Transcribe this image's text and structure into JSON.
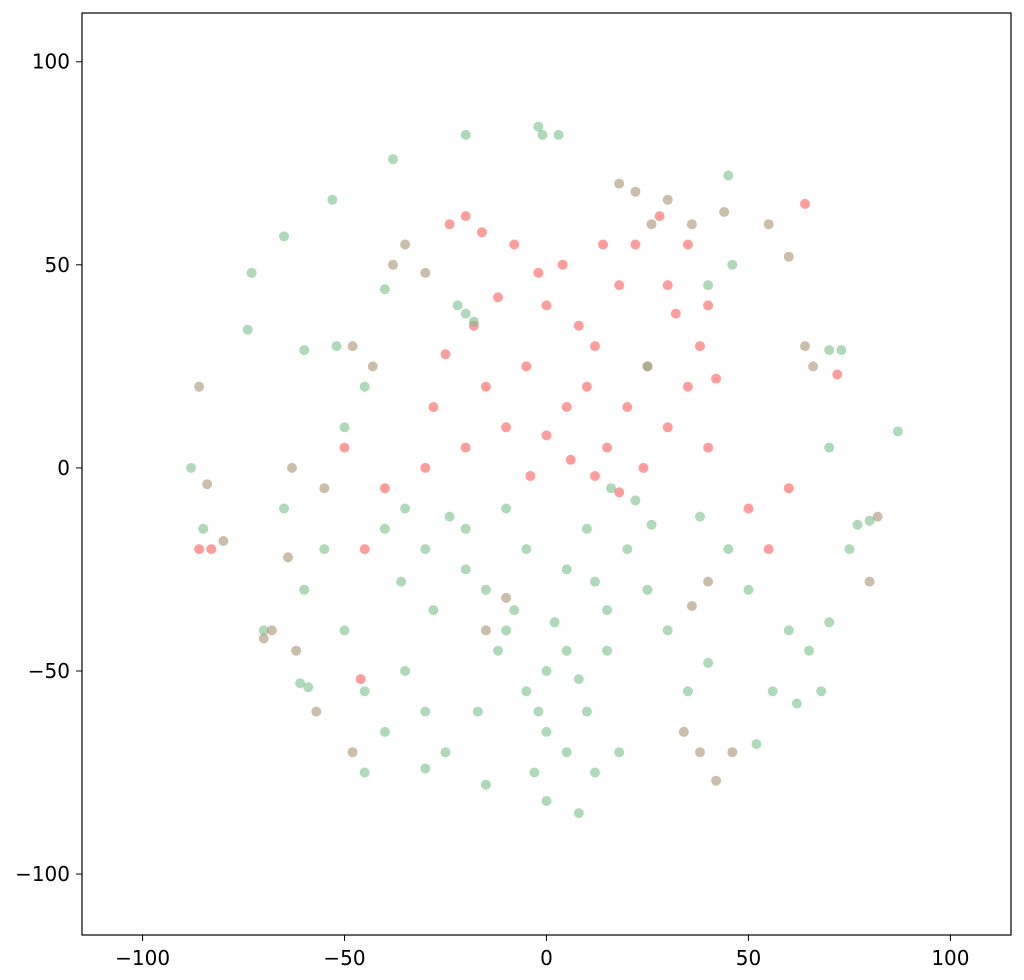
{
  "chart_data": {
    "type": "scatter",
    "title": "",
    "xlabel": "",
    "ylabel": "",
    "xlim": [
      -115,
      115
    ],
    "ylim": [
      -115,
      112
    ],
    "grid": false,
    "legend": "none",
    "x_ticks": [
      -100,
      -50,
      0,
      50,
      100
    ],
    "y_ticks": [
      -100,
      -50,
      0,
      50,
      100
    ],
    "x_tick_labels": [
      "−100",
      "−50",
      "0",
      "50",
      "100"
    ],
    "y_tick_labels": [
      "−100",
      "−50",
      "0",
      "50",
      "100"
    ],
    "colors": {
      "red": "#ff4d4d",
      "green": "#6dbb82",
      "mixed": "#a08a68"
    },
    "series": [
      {
        "color": "#ff4d4d",
        "points": [
          [
            -20,
            62
          ],
          [
            -16,
            58
          ],
          [
            -24,
            60
          ],
          [
            5,
            15
          ],
          [
            10,
            20
          ],
          [
            15,
            5
          ],
          [
            20,
            15
          ],
          [
            -5,
            25
          ],
          [
            -10,
            10
          ],
          [
            25,
            25
          ],
          [
            30,
            10
          ],
          [
            35,
            20
          ],
          [
            40,
            5
          ],
          [
            12,
            30
          ],
          [
            8,
            35
          ],
          [
            0,
            40
          ],
          [
            -15,
            20
          ],
          [
            -20,
            5
          ],
          [
            18,
            45
          ],
          [
            22,
            55
          ],
          [
            30,
            45
          ],
          [
            35,
            55
          ],
          [
            40,
            40
          ],
          [
            -30,
            0
          ],
          [
            -40,
            -5
          ],
          [
            -45,
            -20
          ],
          [
            -50,
            5
          ],
          [
            50,
            -10
          ],
          [
            55,
            -20
          ],
          [
            60,
            -5
          ],
          [
            -8,
            55
          ],
          [
            -2,
            48
          ],
          [
            4,
            50
          ],
          [
            14,
            55
          ],
          [
            28,
            62
          ],
          [
            32,
            38
          ],
          [
            38,
            30
          ],
          [
            42,
            22
          ],
          [
            -12,
            42
          ],
          [
            -18,
            35
          ],
          [
            -25,
            28
          ],
          [
            -28,
            15
          ],
          [
            6,
            2
          ],
          [
            12,
            -2
          ],
          [
            18,
            -6
          ],
          [
            24,
            0
          ],
          [
            0,
            8
          ],
          [
            -4,
            -2
          ],
          [
            -46,
            -52
          ],
          [
            -83,
            -20
          ],
          [
            -86,
            -20
          ],
          [
            64,
            65
          ],
          [
            72,
            23
          ]
        ]
      },
      {
        "color": "#6dbb82",
        "points": [
          [
            0,
            -50
          ],
          [
            5,
            -45
          ],
          [
            -5,
            -55
          ],
          [
            -10,
            -40
          ],
          [
            10,
            -60
          ],
          [
            15,
            -35
          ],
          [
            -15,
            -30
          ],
          [
            20,
            -20
          ],
          [
            -20,
            -25
          ],
          [
            0,
            -65
          ],
          [
            -3,
            -75
          ],
          [
            5,
            -70
          ],
          [
            -25,
            -70
          ],
          [
            -30,
            -60
          ],
          [
            30,
            -40
          ],
          [
            25,
            -30
          ],
          [
            -35,
            -10
          ],
          [
            -40,
            -15
          ],
          [
            45,
            -20
          ],
          [
            50,
            -30
          ],
          [
            -55,
            -20
          ],
          [
            60,
            -40
          ],
          [
            -60,
            -30
          ],
          [
            35,
            -55
          ],
          [
            -45,
            -55
          ],
          [
            -61,
            -53
          ],
          [
            -59,
            -54
          ],
          [
            -88,
            0
          ],
          [
            -85,
            -15
          ],
          [
            80,
            -13
          ],
          [
            77,
            -14
          ],
          [
            0,
            -82
          ],
          [
            65,
            -45
          ],
          [
            70,
            -38
          ],
          [
            75,
            -20
          ],
          [
            -70,
            -40
          ],
          [
            -65,
            -10
          ],
          [
            -50,
            -40
          ],
          [
            -10,
            -10
          ],
          [
            10,
            -15
          ],
          [
            -5,
            -20
          ],
          [
            5,
            -25
          ],
          [
            12,
            -28
          ],
          [
            -8,
            -35
          ],
          [
            -12,
            -45
          ],
          [
            8,
            -52
          ],
          [
            -2,
            -60
          ],
          [
            2,
            -38
          ],
          [
            22,
            -8
          ],
          [
            26,
            -14
          ],
          [
            -24,
            -12
          ],
          [
            -30,
            -20
          ],
          [
            -28,
            -35
          ],
          [
            -36,
            -28
          ],
          [
            38,
            -12
          ],
          [
            -53,
            66
          ],
          [
            -1,
            82
          ],
          [
            3,
            82
          ],
          [
            -2,
            84
          ],
          [
            -20,
            38
          ],
          [
            -22,
            40
          ],
          [
            -18,
            36
          ],
          [
            -73,
            48
          ],
          [
            -65,
            57
          ],
          [
            70,
            29
          ],
          [
            73,
            29
          ],
          [
            70,
            5
          ],
          [
            87,
            9
          ],
          [
            -40,
            44
          ],
          [
            25,
            25
          ],
          [
            -60,
            29
          ],
          [
            45,
            72
          ],
          [
            -74,
            34
          ],
          [
            -52,
            30
          ],
          [
            -20,
            -15
          ],
          [
            15,
            -45
          ],
          [
            -35,
            -50
          ],
          [
            40,
            -48
          ],
          [
            -17,
            -60
          ],
          [
            18,
            -70
          ],
          [
            8,
            -85
          ],
          [
            -30,
            -74
          ],
          [
            12,
            -75
          ],
          [
            -15,
            -78
          ],
          [
            52,
            -68
          ],
          [
            56,
            -55
          ],
          [
            -40,
            -65
          ],
          [
            -45,
            -75
          ],
          [
            68,
            -55
          ],
          [
            62,
            -58
          ],
          [
            -20,
            82
          ],
          [
            -38,
            76
          ],
          [
            16,
            -5
          ],
          [
            40,
            45
          ],
          [
            46,
            50
          ],
          [
            -45,
            20
          ],
          [
            -50,
            10
          ]
        ]
      },
      {
        "color": "#a08a68",
        "points": [
          [
            18,
            70
          ],
          [
            22,
            68
          ],
          [
            26,
            60
          ],
          [
            30,
            66
          ],
          [
            36,
            60
          ],
          [
            44,
            63
          ],
          [
            -30,
            48
          ],
          [
            -35,
            55
          ],
          [
            -38,
            50
          ],
          [
            -86,
            20
          ],
          [
            -84,
            -4
          ],
          [
            -80,
            -18
          ],
          [
            55,
            60
          ],
          [
            -43,
            25
          ],
          [
            -48,
            30
          ],
          [
            60,
            52
          ],
          [
            64,
            30
          ],
          [
            66,
            25
          ],
          [
            -70,
            -42
          ],
          [
            -48,
            -70
          ],
          [
            34,
            -65
          ],
          [
            38,
            -70
          ],
          [
            42,
            -77
          ],
          [
            46,
            -70
          ],
          [
            -15,
            -40
          ],
          [
            -10,
            -32
          ],
          [
            40,
            -28
          ],
          [
            36,
            -34
          ],
          [
            -62,
            -45
          ],
          [
            -57,
            -60
          ],
          [
            -55,
            -5
          ],
          [
            -63,
            0
          ],
          [
            80,
            -28
          ],
          [
            82,
            -12
          ],
          [
            -64,
            -22
          ],
          [
            -68,
            -40
          ]
        ]
      }
    ]
  }
}
